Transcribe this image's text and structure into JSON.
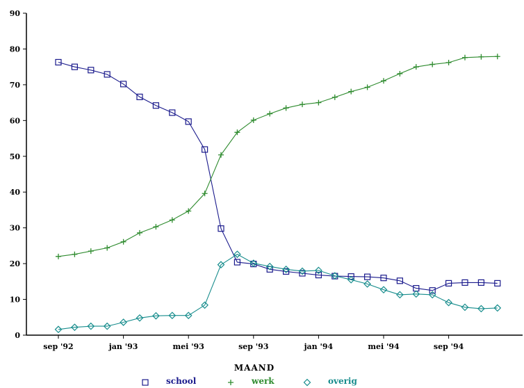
{
  "chart_data": {
    "type": "line",
    "title": "",
    "xlabel": "MAAND",
    "ylabel": "",
    "ylim": [
      0,
      90
    ],
    "yticks": [
      "0",
      "10",
      "20",
      "30",
      "40",
      "50",
      "60",
      "70",
      "80",
      "90"
    ],
    "x_tick_labels": [
      "sep '92",
      "jan '93",
      "mei '93",
      "sep '93",
      "jan '94",
      "mei '94",
      "sep '94"
    ],
    "grid": false,
    "legend": "bottom",
    "months": [
      "1992-09",
      "1992-10",
      "1992-11",
      "1992-12",
      "1993-01",
      "1993-02",
      "1993-03",
      "1993-04",
      "1993-05",
      "1993-06",
      "1993-07",
      "1993-08",
      "1993-09",
      "1993-10",
      "1993-11",
      "1993-12",
      "1994-01",
      "1994-02",
      "1994-03",
      "1994-04",
      "1994-05",
      "1994-06",
      "1994-07",
      "1994-08",
      "1994-09",
      "1994-10",
      "1994-11",
      "1994-12"
    ],
    "series": [
      {
        "name": "school",
        "color": "#1a1a8c",
        "marker": "square",
        "values": [
          76.3,
          75.0,
          74.1,
          72.9,
          70.2,
          66.6,
          64.2,
          62.2,
          59.7,
          51.9,
          29.8,
          20.4,
          19.9,
          18.4,
          17.8,
          17.3,
          16.8,
          16.5,
          16.4,
          16.3,
          16.0,
          15.2,
          13.1,
          12.5,
          14.5,
          14.7,
          14.7,
          14.5
        ]
      },
      {
        "name": "werk",
        "color": "#2e8b2e",
        "marker": "plus",
        "values": [
          22.0,
          22.6,
          23.5,
          24.4,
          26.1,
          28.6,
          30.3,
          32.2,
          34.7,
          39.6,
          50.4,
          56.7,
          60.1,
          61.9,
          63.5,
          64.5,
          65.0,
          66.5,
          68.1,
          69.3,
          71.1,
          73.1,
          75.0,
          75.7,
          76.2,
          77.6,
          77.8,
          77.9
        ]
      },
      {
        "name": "overig",
        "color": "#168c8c",
        "marker": "diamond",
        "values": [
          1.6,
          2.2,
          2.5,
          2.5,
          3.6,
          4.8,
          5.4,
          5.5,
          5.5,
          8.4,
          19.7,
          22.6,
          20.1,
          19.2,
          18.4,
          17.9,
          18.1,
          16.6,
          15.5,
          14.3,
          12.7,
          11.3,
          11.5,
          11.3,
          9.1,
          7.8,
          7.4,
          7.6
        ]
      }
    ]
  }
}
